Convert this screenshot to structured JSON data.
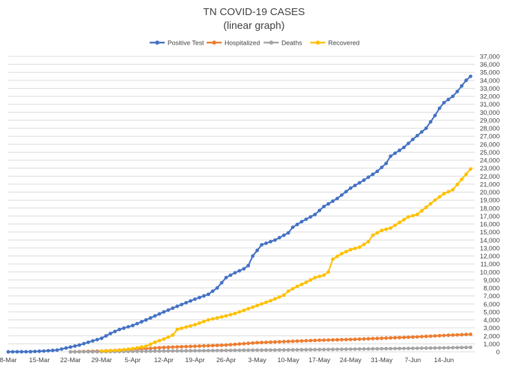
{
  "chart_data": {
    "type": "line",
    "title": "TN COVID-19 CASES",
    "subtitle": "(linear graph)",
    "xlabel": "",
    "ylabel": "",
    "x_tick_labels": [
      "8-Mar",
      "15-Mar",
      "22-Mar",
      "29-Mar",
      "5-Apr",
      "12-Apr",
      "19-Apr",
      "26-Apr",
      "3-May",
      "10-May",
      "17-May",
      "24-May",
      "31-May",
      "7-Jun",
      "14-Jun"
    ],
    "ylim": [
      0,
      37000
    ],
    "y_tick_step": 1000,
    "grid": true,
    "legend_position": "top",
    "series": [
      {
        "name": "Positive Test",
        "color": "#4472c4",
        "points": [
          [
            "8-Mar",
            0
          ],
          [
            "13-Mar",
            20
          ],
          [
            "16-Mar",
            100
          ],
          [
            "19-Mar",
            220
          ],
          [
            "22-Mar",
            600
          ],
          [
            "24-Mar",
            850
          ],
          [
            "26-Mar",
            1200
          ],
          [
            "29-Mar",
            1700
          ],
          [
            "31-Mar",
            2300
          ],
          [
            "2-Apr",
            2800
          ],
          [
            "5-Apr",
            3300
          ],
          [
            "8-Apr",
            4000
          ],
          [
            "12-Apr",
            5000
          ],
          [
            "15-Apr",
            5700
          ],
          [
            "19-Apr",
            6600
          ],
          [
            "22-Apr",
            7200
          ],
          [
            "24-Apr",
            8000
          ],
          [
            "26-Apr",
            9300
          ],
          [
            "28-Apr",
            9900
          ],
          [
            "30-Apr",
            10400
          ],
          [
            "1-May",
            10800
          ],
          [
            "2-May",
            12000
          ],
          [
            "4-May",
            13400
          ],
          [
            "7-May",
            14000
          ],
          [
            "10-May",
            14900
          ],
          [
            "11-May",
            15600
          ],
          [
            "13-May",
            16300
          ],
          [
            "16-May",
            17200
          ],
          [
            "18-May",
            18200
          ],
          [
            "21-May",
            19200
          ],
          [
            "24-May",
            20500
          ],
          [
            "27-May",
            21500
          ],
          [
            "30-May",
            22600
          ],
          [
            "1-Jun",
            23600
          ],
          [
            "2-Jun",
            24500
          ],
          [
            "5-Jun",
            25600
          ],
          [
            "7-Jun",
            26600
          ],
          [
            "10-Jun",
            28000
          ],
          [
            "12-Jun",
            29600
          ],
          [
            "13-Jun",
            30500
          ],
          [
            "14-Jun",
            31200
          ],
          [
            "16-Jun",
            32000
          ],
          [
            "17-Jun",
            32600
          ],
          [
            "19-Jun",
            34000
          ],
          [
            "20-Jun",
            34500
          ]
        ]
      },
      {
        "name": "Hospitalized",
        "color": "#ed7d31",
        "points": [
          [
            "22-Mar",
            0
          ],
          [
            "29-Mar",
            100
          ],
          [
            "5-Apr",
            300
          ],
          [
            "12-Apr",
            550
          ],
          [
            "19-Apr",
            700
          ],
          [
            "26-Apr",
            850
          ],
          [
            "3-May",
            1150
          ],
          [
            "10-May",
            1300
          ],
          [
            "17-May",
            1450
          ],
          [
            "24-May",
            1550
          ],
          [
            "31-May",
            1700
          ],
          [
            "7-Jun",
            1850
          ],
          [
            "14-Jun",
            2050
          ],
          [
            "20-Jun",
            2200
          ]
        ]
      },
      {
        "name": "Deaths",
        "color": "#a5a5a5",
        "points": [
          [
            "22-Mar",
            0
          ],
          [
            "29-Mar",
            10
          ],
          [
            "5-Apr",
            60
          ],
          [
            "12-Apr",
            100
          ],
          [
            "19-Apr",
            140
          ],
          [
            "26-Apr",
            180
          ],
          [
            "3-May",
            220
          ],
          [
            "10-May",
            250
          ],
          [
            "17-May",
            290
          ],
          [
            "24-May",
            340
          ],
          [
            "31-May",
            390
          ],
          [
            "7-Jun",
            440
          ],
          [
            "14-Jun",
            500
          ],
          [
            "20-Jun",
            560
          ]
        ]
      },
      {
        "name": "Recovered",
        "color": "#ffc000",
        "points": [
          [
            "29-Mar",
            100
          ],
          [
            "2-Apr",
            200
          ],
          [
            "5-Apr",
            400
          ],
          [
            "8-Apr",
            700
          ],
          [
            "10-Apr",
            1200
          ],
          [
            "12-Apr",
            1600
          ],
          [
            "14-Apr",
            2100
          ],
          [
            "15-Apr",
            2800
          ],
          [
            "17-Apr",
            3100
          ],
          [
            "19-Apr",
            3400
          ],
          [
            "22-Apr",
            4000
          ],
          [
            "26-Apr",
            4500
          ],
          [
            "28-Apr",
            4800
          ],
          [
            "1-May",
            5400
          ],
          [
            "3-May",
            5800
          ],
          [
            "6-May",
            6400
          ],
          [
            "9-May",
            7100
          ],
          [
            "10-May",
            7600
          ],
          [
            "12-May",
            8200
          ],
          [
            "14-May",
            8700
          ],
          [
            "16-May",
            9300
          ],
          [
            "18-May",
            9600
          ],
          [
            "19-May",
            10000
          ],
          [
            "20-May",
            11600
          ],
          [
            "22-May",
            12300
          ],
          [
            "24-May",
            12800
          ],
          [
            "26-May",
            13100
          ],
          [
            "28-May",
            13800
          ],
          [
            "29-May",
            14600
          ],
          [
            "31-May",
            15200
          ],
          [
            "2-Jun",
            15500
          ],
          [
            "4-Jun",
            16200
          ],
          [
            "6-Jun",
            16900
          ],
          [
            "8-Jun",
            17200
          ],
          [
            "10-Jun",
            18100
          ],
          [
            "12-Jun",
            19000
          ],
          [
            "14-Jun",
            19800
          ],
          [
            "16-Jun",
            20300
          ],
          [
            "18-Jun",
            21600
          ],
          [
            "20-Jun",
            22900
          ]
        ]
      }
    ]
  }
}
